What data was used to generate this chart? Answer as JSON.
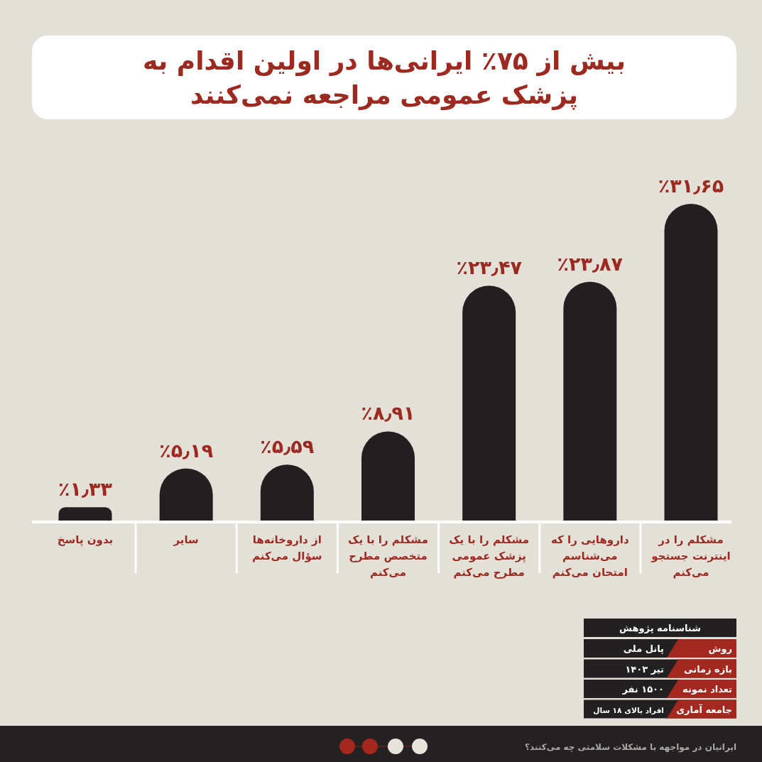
{
  "chart_data": {
    "type": "bar",
    "title": "بیش از ۷۵٪ ایرانی‌ها در اولین اقدام به پزشک عمومی مراجعه نمی‌کنند",
    "categories": [
      "بدون پاسخ",
      "سایر",
      "از داروخانه‌ها سؤال می‌کنم",
      "مشکلم را با یک متخصص مطرح می‌کنم",
      "مشکلم را با یک پزشک عمومی مطرح می‌کنم",
      "داروهایی را که می‌شناسم امتحان می‌کنم",
      "مشکلم را در اینترنت جستجو می‌کنم"
    ],
    "values": [
      1.33,
      5.19,
      5.59,
      8.91,
      23.47,
      23.87,
      31.65
    ],
    "value_labels": [
      "٪۱٫۳۳",
      "٪۵٫۱۹",
      "٪۵٫۵۹",
      "٪۸٫۹۱",
      "٪۲۳٫۴۷",
      "٪۲۳٫۸۷",
      "٪۳۱٫۶۵"
    ],
    "color": "#231f20",
    "annotations": [
      "شناسنامه پژوهش",
      "روش",
      "پانل ملی",
      "بازه زمانی",
      "تیر ۱۴۰۳",
      "تعداد نمونه",
      "۱۵۰۰ نفر",
      "جامعه آماری",
      "افراد بالای ۱۸ سال",
      "ایرانیان در مواجهه با مشکلات سلامتی چه می‌کنند؟"
    ]
  }
}
